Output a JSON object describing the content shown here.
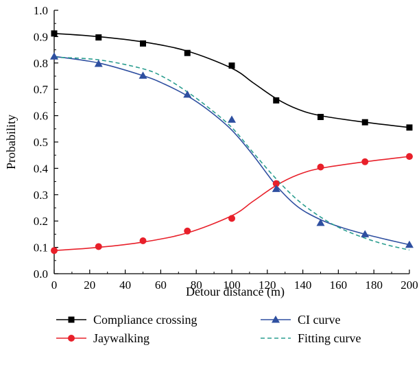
{
  "chart_data": {
    "type": "line",
    "title": "",
    "xlabel": "Detour distance (m)",
    "ylabel": "Probability",
    "xlim": [
      0,
      200
    ],
    "ylim": [
      0.0,
      1.0
    ],
    "x_ticks": [
      0,
      20,
      40,
      60,
      80,
      100,
      120,
      140,
      160,
      180,
      200
    ],
    "y_ticks": [
      "0.0",
      "0.1",
      "0.2",
      "0.3",
      "0.4",
      "0.5",
      "0.6",
      "0.7",
      "0.8",
      "0.9",
      "1.0"
    ],
    "grid": false,
    "legend_position": "bottom",
    "series": [
      {
        "name": "Compliance crossing",
        "color": "#000000",
        "marker": "square",
        "x": [
          0,
          25,
          50,
          75,
          100,
          125,
          150,
          175,
          200
        ],
        "y": [
          0.912,
          0.897,
          0.874,
          0.838,
          0.79,
          0.658,
          0.595,
          0.575,
          0.555
        ],
        "fit_x": [
          0,
          25,
          50,
          75,
          100,
          112,
          125,
          137,
          150,
          175,
          200
        ],
        "fit_y": [
          0.912,
          0.9,
          0.88,
          0.845,
          0.78,
          0.725,
          0.665,
          0.625,
          0.6,
          0.575,
          0.555
        ]
      },
      {
        "name": "Jaywalking",
        "color": "#e8202a",
        "marker": "circle",
        "x": [
          0,
          25,
          50,
          75,
          100,
          125,
          150,
          175,
          200
        ],
        "y": [
          0.088,
          0.103,
          0.125,
          0.162,
          0.21,
          0.342,
          0.405,
          0.425,
          0.445
        ],
        "fit_x": [
          0,
          25,
          50,
          75,
          100,
          112,
          125,
          137,
          150,
          175,
          200
        ],
        "fit_y": [
          0.088,
          0.1,
          0.12,
          0.155,
          0.22,
          0.275,
          0.335,
          0.375,
          0.4,
          0.425,
          0.445
        ]
      },
      {
        "name": "CI curve",
        "color": "#2e4fa0",
        "marker": "triangle",
        "x": [
          0,
          25,
          50,
          75,
          100,
          125,
          150,
          175,
          200
        ],
        "y": [
          0.825,
          0.797,
          0.752,
          0.68,
          0.585,
          0.322,
          0.193,
          0.15,
          0.11
        ],
        "fit_x": [
          0,
          25,
          50,
          62,
          75,
          87,
          100,
          112,
          125,
          137,
          150,
          162,
          175,
          187,
          200
        ],
        "fit_y": [
          0.825,
          0.8,
          0.752,
          0.72,
          0.675,
          0.62,
          0.545,
          0.45,
          0.335,
          0.255,
          0.205,
          0.175,
          0.15,
          0.13,
          0.11
        ]
      },
      {
        "name": "Fitting curve",
        "color": "#2a9d8f",
        "dashed": true,
        "fit_x": [
          0,
          25,
          50,
          62,
          75,
          87,
          100,
          112,
          125,
          137,
          150,
          162,
          175,
          187,
          200
        ],
        "fit_y": [
          0.822,
          0.812,
          0.778,
          0.745,
          0.69,
          0.63,
          0.555,
          0.46,
          0.36,
          0.28,
          0.215,
          0.17,
          0.135,
          0.11,
          0.09
        ]
      }
    ],
    "legend": [
      {
        "label": "Compliance crossing",
        "series": 0
      },
      {
        "label": "Jaywalking",
        "series": 1
      },
      {
        "label": "CI curve",
        "series": 2
      },
      {
        "label": "Fitting curve",
        "series": 3
      }
    ]
  }
}
